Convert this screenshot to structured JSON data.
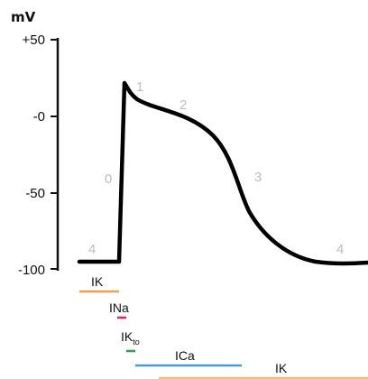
{
  "y_axis": {
    "unit": "mV",
    "ticks": [
      {
        "label": "+50",
        "value": 50
      },
      {
        "label": "-0",
        "value": 0
      },
      {
        "label": "-50",
        "value": -50
      },
      {
        "label": "-100",
        "value": -100
      }
    ]
  },
  "phases": [
    "0",
    "1",
    "2",
    "3",
    "4",
    "4"
  ],
  "currents": [
    {
      "label": "IK",
      "subscript": "",
      "color": "#f0a04b"
    },
    {
      "label": "INa",
      "subscript": "",
      "color": "#e0245e"
    },
    {
      "label": "IK",
      "subscript": "to",
      "color": "#2e9e4f"
    },
    {
      "label": "ICa",
      "subscript": "",
      "color": "#4a9ad4"
    },
    {
      "label": "IK",
      "subscript": "",
      "color": "#f2b98a"
    }
  ],
  "colors": {
    "trace": "#000000",
    "axis": "#111111",
    "phase_label": "#b8bec4"
  }
}
